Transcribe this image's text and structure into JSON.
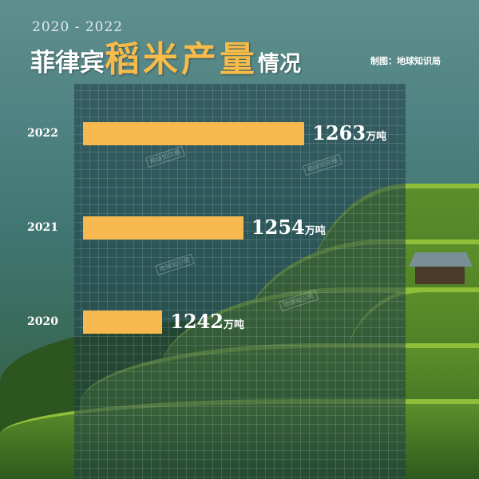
{
  "header": {
    "subtitle": "2020 - 2022",
    "title_a": "菲律宾",
    "title_b": "稻米产量",
    "title_c": "情况",
    "credit": "制图：地球知识局"
  },
  "watermark": "地球知识局",
  "colors": {
    "bar": "#f6b84f",
    "highlight": "#f6bb4a"
  },
  "chart_data": {
    "type": "bar",
    "orientation": "horizontal",
    "categories": [
      "2022",
      "2021",
      "2020"
    ],
    "values": [
      1263,
      1254,
      1242
    ],
    "unit": "万吨",
    "labels": [
      "1263",
      "1254",
      "1242"
    ]
  }
}
